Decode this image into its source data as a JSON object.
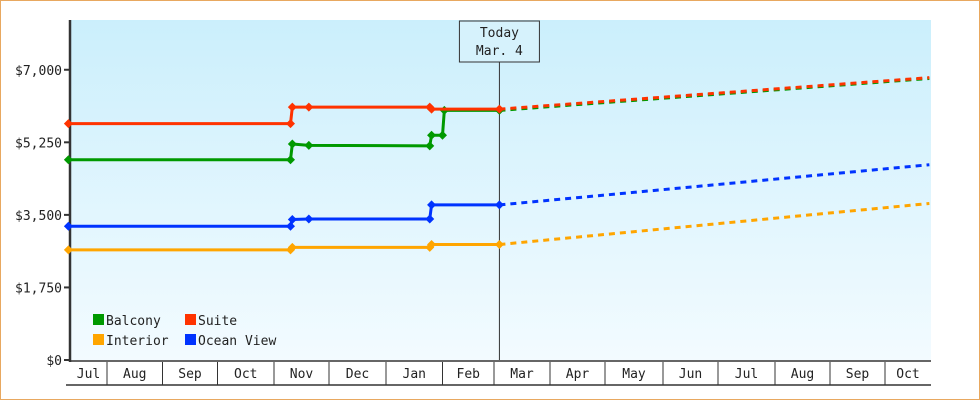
{
  "chart_data": {
    "type": "line",
    "title": "",
    "xlabel": "",
    "ylabel": "",
    "ylim": [
      0,
      8200
    ],
    "x_range": [
      "Jul 11",
      "Oct 26"
    ],
    "y_ticks": [
      {
        "value": 0,
        "label": "$0"
      },
      {
        "value": 1750,
        "label": "$1,750"
      },
      {
        "value": 3500,
        "label": "$3,500"
      },
      {
        "value": 5250,
        "label": "$5,250"
      },
      {
        "value": 7000,
        "label": "$7,000"
      }
    ],
    "x_ticks": [
      "Jul",
      "Aug",
      "Sep",
      "Oct",
      "Nov",
      "Dec",
      "Jan",
      "Feb",
      "Mar",
      "Apr",
      "May",
      "Jun",
      "Jul",
      "Aug",
      "Sep",
      "Oct"
    ],
    "grid": false,
    "legend_position": "bottom-left",
    "today_marker": {
      "line1": "Today",
      "line2": "Mar. 4",
      "date": "Mar 4"
    },
    "series": [
      {
        "name": "Balcony",
        "color": "#009900",
        "points": [
          [
            "Jul 11",
            4830
          ],
          [
            "Nov 10",
            4830
          ],
          [
            "Nov 11",
            5210
          ],
          [
            "Nov 20",
            5175
          ],
          [
            "Jan 25",
            5165
          ],
          [
            "Jan 26",
            5420
          ],
          [
            "Feb 1",
            5420
          ],
          [
            "Feb 2",
            6020
          ],
          [
            "Mar 4",
            6020
          ]
        ],
        "forecast": [
          [
            "Mar 4",
            6020
          ],
          [
            "Oct 26",
            6790
          ]
        ]
      },
      {
        "name": "Suite",
        "color": "#ff3300",
        "points": [
          [
            "Jul 11",
            5700
          ],
          [
            "Nov 10",
            5700
          ],
          [
            "Nov 11",
            6100
          ],
          [
            "Nov 20",
            6100
          ],
          [
            "Jan 25",
            6100
          ],
          [
            "Jan 26",
            6050
          ],
          [
            "Mar 4",
            6050
          ]
        ],
        "forecast": [
          [
            "Mar 4",
            6050
          ],
          [
            "Oct 26",
            6810
          ]
        ]
      },
      {
        "name": "Interior",
        "color": "#ffa500",
        "points": [
          [
            "Jul 11",
            2655
          ],
          [
            "Nov 10",
            2655
          ],
          [
            "Nov 11",
            2715
          ],
          [
            "Jan 25",
            2715
          ],
          [
            "Jan 26",
            2785
          ],
          [
            "Mar 4",
            2785
          ]
        ],
        "forecast": [
          [
            "Mar 4",
            2785
          ],
          [
            "Oct 26",
            3775
          ]
        ]
      },
      {
        "name": "Ocean View",
        "color": "#0033ff",
        "points": [
          [
            "Jul 11",
            3225
          ],
          [
            "Nov 10",
            3225
          ],
          [
            "Nov 11",
            3390
          ],
          [
            "Nov 20",
            3400
          ],
          [
            "Jan 25",
            3400
          ],
          [
            "Jan 26",
            3740
          ],
          [
            "Mar 4",
            3740
          ]
        ],
        "forecast": [
          [
            "Mar 4",
            3740
          ],
          [
            "Oct 26",
            4710
          ]
        ]
      }
    ]
  }
}
